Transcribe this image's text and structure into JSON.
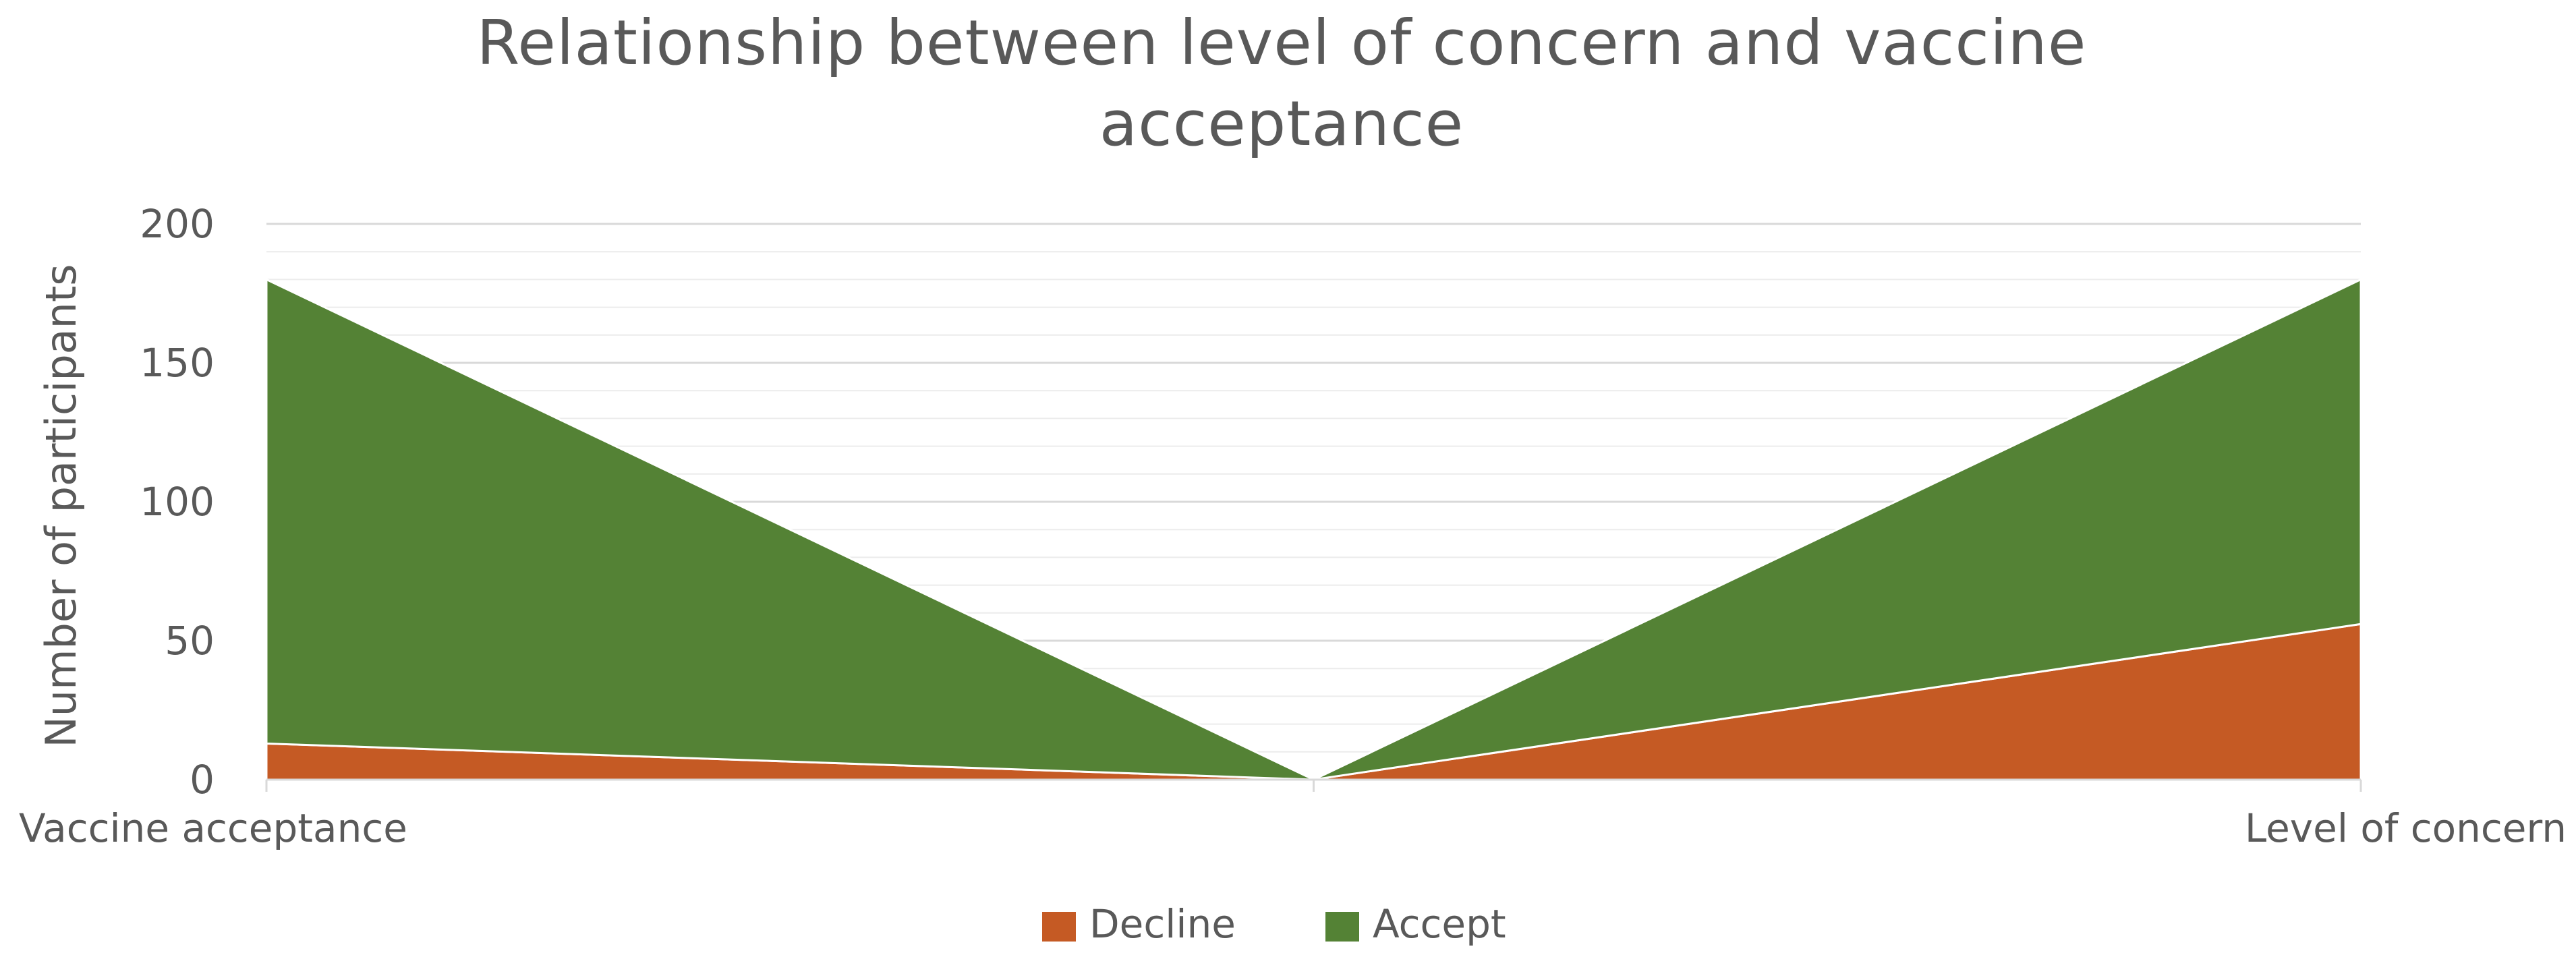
{
  "chart_data": {
    "type": "area",
    "stacked": true,
    "title": "Relationship between level of concern and vaccine acceptance",
    "title_lines": [
      "Relationship between level of concern and vaccine",
      "acceptance"
    ],
    "categories": [
      "Vaccine acceptance",
      "",
      "Level of concern"
    ],
    "ylabel": "Number of participants",
    "xlabel": "",
    "ylim": [
      0,
      200
    ],
    "yticks": [
      0,
      50,
      100,
      150,
      200
    ],
    "grid": true,
    "legend": "bottom",
    "series": [
      {
        "name": "Decline",
        "values": [
          13,
          0,
          56
        ],
        "color": "#C55A24"
      },
      {
        "name": "Accept",
        "values": [
          167,
          0,
          124
        ],
        "color": "#548235"
      }
    ]
  }
}
